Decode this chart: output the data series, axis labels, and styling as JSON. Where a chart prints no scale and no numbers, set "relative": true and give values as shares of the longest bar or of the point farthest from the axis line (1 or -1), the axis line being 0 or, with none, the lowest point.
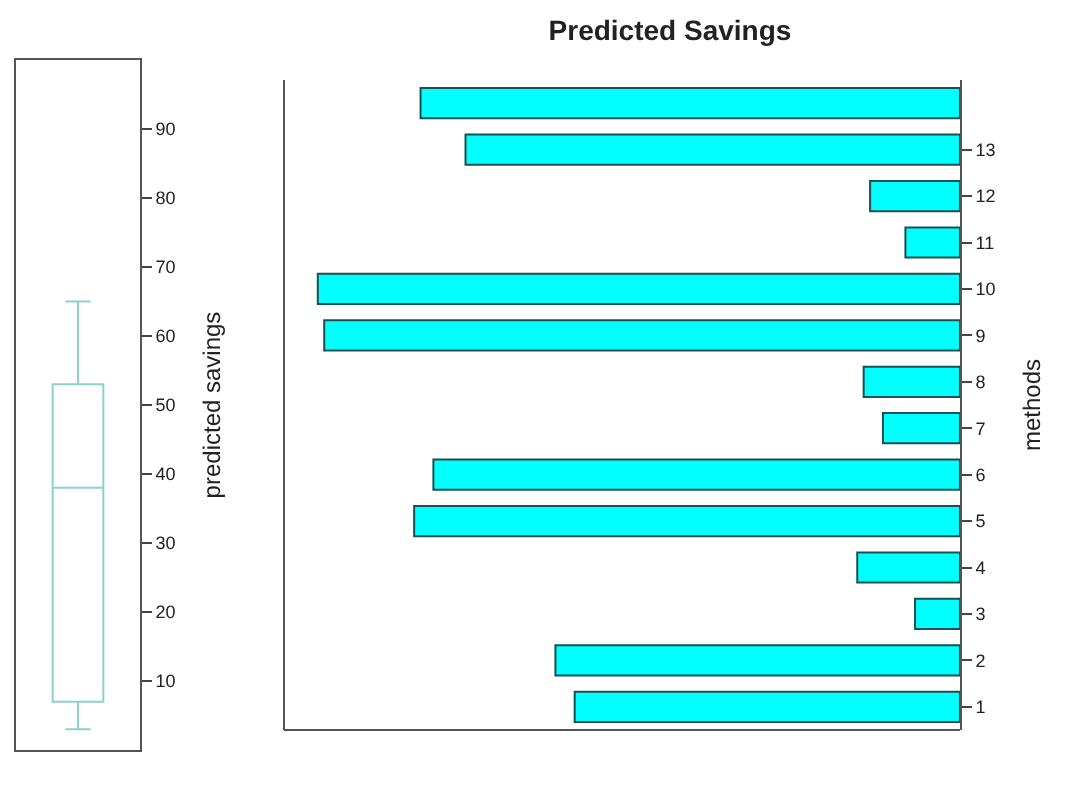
{
  "chart_data": [
    {
      "type": "box",
      "categories": [
        null
      ],
      "ylabel": "predicted savings",
      "ylim": [
        0,
        100
      ],
      "yticks": [
        10,
        20,
        30,
        40,
        50,
        60,
        70,
        80,
        90
      ],
      "color": "#8fcfcf",
      "boxes": [
        {
          "low": 3,
          "q1": 7,
          "median": 38,
          "q3": 53,
          "high": 65
        }
      ]
    },
    {
      "type": "bar",
      "title": "Predicted Savings",
      "ylabel": "methods",
      "orientation": "horizontal",
      "relative": true,
      "color": "#00ffff",
      "categories": [
        null,
        "13",
        "12",
        "11",
        "10",
        "9",
        "8",
        "7",
        "6",
        "5",
        "4",
        "3",
        "2",
        "1"
      ],
      "values": [
        0.84,
        0.77,
        0.14,
        0.085,
        1,
        0.99,
        0.15,
        0.12,
        0.82,
        0.85,
        0.16,
        0.07,
        0.63,
        0.6
      ]
    }
  ]
}
